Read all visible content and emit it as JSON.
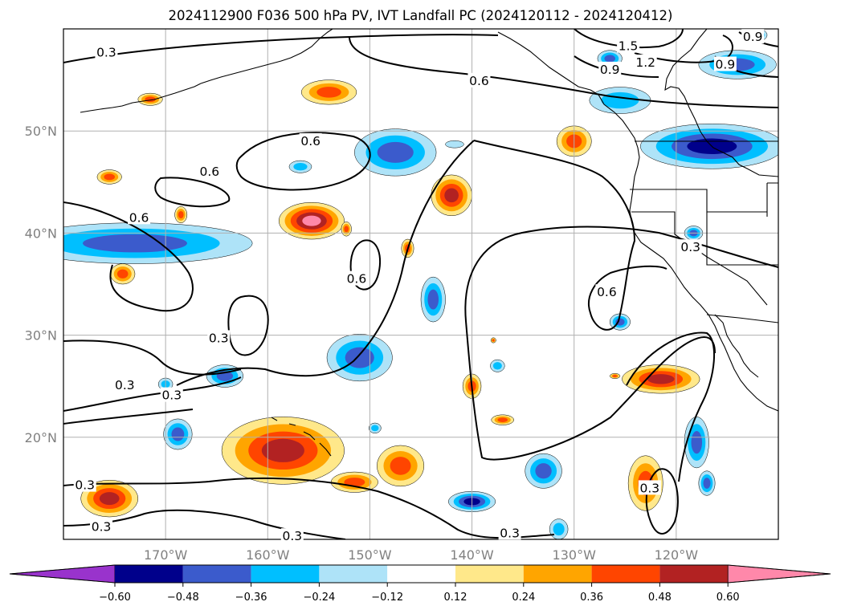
{
  "title": "2024112900 F036 500 hPa PV, IVT Landfall PC (2024120112 - 2024120412)",
  "map": {
    "lon_range": [
      -180,
      -110
    ],
    "lat_range": [
      10,
      60
    ],
    "lat_labels": [
      {
        "lat": 50,
        "text": "50°N"
      },
      {
        "lat": 40,
        "text": "40°N"
      },
      {
        "lat": 30,
        "text": "30°N"
      },
      {
        "lat": 20,
        "text": "20°N"
      }
    ],
    "lon_labels": [
      {
        "lon": -170,
        "text": "170°W"
      },
      {
        "lon": -160,
        "text": "160°W"
      },
      {
        "lon": -150,
        "text": "150°W"
      },
      {
        "lon": -140,
        "text": "140°W"
      },
      {
        "lon": -130,
        "text": "130°W"
      },
      {
        "lon": -120,
        "text": "120°W"
      }
    ],
    "contour_labels": [
      {
        "text": "0.3",
        "lon": -175.8,
        "lat": 57.7
      },
      {
        "text": "1.5",
        "lon": -124.7,
        "lat": 58.3
      },
      {
        "text": "1.2",
        "lon": -123.0,
        "lat": 56.7
      },
      {
        "text": "0.9",
        "lon": -126.5,
        "lat": 56.0
      },
      {
        "text": "0.9",
        "lon": -115.2,
        "lat": 56.5
      },
      {
        "text": "0.9",
        "lon": -112.5,
        "lat": 59.2
      },
      {
        "text": "0.6",
        "lon": -139.3,
        "lat": 54.9
      },
      {
        "text": "0.6",
        "lon": -155.8,
        "lat": 49.0
      },
      {
        "text": "0.6",
        "lon": -165.7,
        "lat": 46.0
      },
      {
        "text": "0.6",
        "lon": -172.6,
        "lat": 41.5
      },
      {
        "text": "0.6",
        "lon": -151.3,
        "lat": 35.5
      },
      {
        "text": "0.6",
        "lon": -126.8,
        "lat": 34.2
      },
      {
        "text": "0.3",
        "lon": -118.6,
        "lat": 38.6
      },
      {
        "text": "0.3",
        "lon": -164.8,
        "lat": 29.7
      },
      {
        "text": "0.3",
        "lon": -174.0,
        "lat": 25.1
      },
      {
        "text": "0.3",
        "lon": -169.4,
        "lat": 24.1
      },
      {
        "text": "0.3",
        "lon": -177.9,
        "lat": 15.3
      },
      {
        "text": "0.3",
        "lon": -176.3,
        "lat": 11.2
      },
      {
        "text": "0.3",
        "lon": -157.6,
        "lat": 10.3
      },
      {
        "text": "0.3",
        "lon": -136.3,
        "lat": 10.6
      },
      {
        "text": "0.3",
        "lon": -122.6,
        "lat": 15.0
      }
    ],
    "features": [
      {
        "lon": -154,
        "lat": 53.8,
        "rx": 2.7,
        "ry": 1.2,
        "level": 3
      },
      {
        "lon": -171.5,
        "lat": 53.1,
        "rx": 1.2,
        "ry": 0.6,
        "level": 3
      },
      {
        "lon": -147.5,
        "lat": 47.9,
        "rx": 4.0,
        "ry": 2.3,
        "level": -3
      },
      {
        "lon": -156.8,
        "lat": 46.5,
        "rx": 1.1,
        "ry": 0.6,
        "level": -2
      },
      {
        "lon": -141.7,
        "lat": 48.7,
        "rx": 0.9,
        "ry": 0.35,
        "level": -1
      },
      {
        "lon": -175.5,
        "lat": 45.5,
        "rx": 1.2,
        "ry": 0.7,
        "level": 3
      },
      {
        "lon": -142.0,
        "lat": 43.7,
        "rx": 2.0,
        "ry": 2.0,
        "level": 4
      },
      {
        "lon": -155.7,
        "lat": 41.2,
        "rx": 3.2,
        "ry": 1.8,
        "level": 5
      },
      {
        "lon": -168.5,
        "lat": 41.8,
        "rx": 0.6,
        "ry": 0.8,
        "level": 3
      },
      {
        "lon": -173.0,
        "lat": 39.0,
        "rx": 11.5,
        "ry": 2.0,
        "level": -3
      },
      {
        "lon": -174.2,
        "lat": 36.0,
        "rx": 1.2,
        "ry": 1.0,
        "level": 3
      },
      {
        "lon": -146.3,
        "lat": 38.5,
        "rx": 0.6,
        "ry": 0.9,
        "level": 3
      },
      {
        "lon": -152.3,
        "lat": 40.4,
        "rx": 0.5,
        "ry": 0.7,
        "level": 3
      },
      {
        "lon": -143.8,
        "lat": 33.5,
        "rx": 1.2,
        "ry": 2.2,
        "level": -3
      },
      {
        "lon": -130.0,
        "lat": 49.0,
        "rx": 1.7,
        "ry": 1.5,
        "level": 3
      },
      {
        "lon": -126.5,
        "lat": 57.1,
        "rx": 1.2,
        "ry": 0.8,
        "level": -3
      },
      {
        "lon": -125.5,
        "lat": 53.0,
        "rx": 3.0,
        "ry": 1.3,
        "level": -2
      },
      {
        "lon": -114.0,
        "lat": 56.5,
        "rx": 3.8,
        "ry": 1.4,
        "level": -3
      },
      {
        "lon": -112.0,
        "lat": 59.4,
        "rx": 0.9,
        "ry": 0.6,
        "level": -3
      },
      {
        "lon": -116.5,
        "lat": 48.5,
        "rx": 7.0,
        "ry": 2.2,
        "level": -4
      },
      {
        "lon": -118.3,
        "lat": 40.0,
        "rx": 0.9,
        "ry": 0.7,
        "level": -3
      },
      {
        "lon": -125.5,
        "lat": 31.3,
        "rx": 1.0,
        "ry": 0.8,
        "level": -3
      },
      {
        "lon": -151.0,
        "lat": 27.8,
        "rx": 3.2,
        "ry": 2.3,
        "level": -3
      },
      {
        "lon": -164.2,
        "lat": 26.0,
        "rx": 1.8,
        "ry": 1.1,
        "level": -3
      },
      {
        "lon": -170.0,
        "lat": 25.2,
        "rx": 0.7,
        "ry": 0.6,
        "level": -2
      },
      {
        "lon": -168.8,
        "lat": 20.3,
        "rx": 1.4,
        "ry": 1.5,
        "level": -3
      },
      {
        "lon": -149.5,
        "lat": 20.9,
        "rx": 0.6,
        "ry": 0.5,
        "level": -2
      },
      {
        "lon": -137.5,
        "lat": 27.0,
        "rx": 0.7,
        "ry": 0.6,
        "level": -2
      },
      {
        "lon": -140.0,
        "lat": 25.0,
        "rx": 0.9,
        "ry": 1.2,
        "level": 3
      },
      {
        "lon": -137.0,
        "lat": 21.7,
        "rx": 1.1,
        "ry": 0.5,
        "level": 3
      },
      {
        "lon": -158.5,
        "lat": 18.7,
        "rx": 6.0,
        "ry": 3.3,
        "level": 4
      },
      {
        "lon": -151.5,
        "lat": 15.6,
        "rx": 2.3,
        "ry": 1.0,
        "level": 3
      },
      {
        "lon": -147.0,
        "lat": 17.2,
        "rx": 2.3,
        "ry": 2.0,
        "level": 3
      },
      {
        "lon": -175.5,
        "lat": 14.0,
        "rx": 2.8,
        "ry": 1.8,
        "level": 4
      },
      {
        "lon": -133.0,
        "lat": 16.7,
        "rx": 1.8,
        "ry": 1.7,
        "level": -3
      },
      {
        "lon": -140.0,
        "lat": 13.7,
        "rx": 2.3,
        "ry": 1.0,
        "level": -4
      },
      {
        "lon": -131.5,
        "lat": 11.0,
        "rx": 0.9,
        "ry": 1.0,
        "level": -2
      },
      {
        "lon": -121.5,
        "lat": 25.7,
        "rx": 3.8,
        "ry": 1.4,
        "level": 4
      },
      {
        "lon": -126.0,
        "lat": 26.0,
        "rx": 0.5,
        "ry": 0.25,
        "level": 3
      },
      {
        "lon": -123.0,
        "lat": 15.5,
        "rx": 1.7,
        "ry": 2.7,
        "level": 3
      },
      {
        "lon": -118.0,
        "lat": 19.5,
        "rx": 1.2,
        "ry": 2.5,
        "level": -3
      },
      {
        "lon": -117.0,
        "lat": 15.5,
        "rx": 0.8,
        "ry": 1.2,
        "level": -3
      },
      {
        "lon": -137.9,
        "lat": 29.5,
        "rx": 0.25,
        "ry": 0.25,
        "level": 3
      }
    ]
  },
  "colorbar": {
    "ticks": [
      "−0.60",
      "−0.48",
      "−0.36",
      "−0.24",
      "−0.12",
      "0.12",
      "0.24",
      "0.36",
      "0.48",
      "0.60"
    ],
    "colors": [
      "#9933cc",
      "#00008b",
      "#3b5bcc",
      "#00bfff",
      "#aee3f8",
      "#ffffff",
      "#ffe88a",
      "#ffa500",
      "#ff4500",
      "#b22222",
      "#ff88aa"
    ]
  }
}
